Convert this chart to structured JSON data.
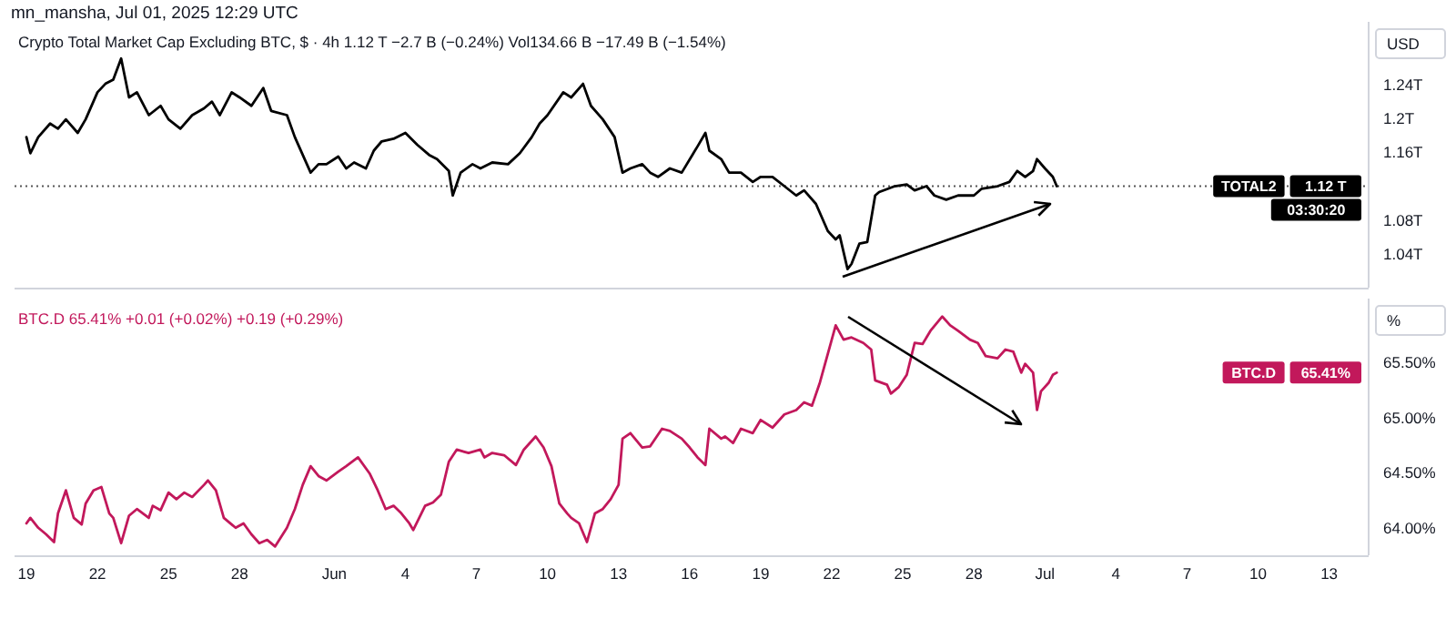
{
  "chart_data": [
    {
      "type": "line",
      "subtitle": "mn_mansha, Jul 01, 2025 12:29 UTC",
      "title": "Crypto Total Market Cap Excluding BTC, $ · 4h  1.12 T  −2.7 B (−0.24%)  Vol134.66 B  −17.49 B (−1.54%)",
      "ylabel": "USD",
      "color": "#000000",
      "x": [
        "2025-05-19T00:00",
        "2025-05-19T04:00",
        "2025-05-19T12:00",
        "2025-05-20T00:00",
        "2025-05-20T08:00",
        "2025-05-20T16:00",
        "2025-05-21T04:00",
        "2025-05-21T12:00",
        "2025-05-22T00:00",
        "2025-05-22T08:00",
        "2025-05-22T16:00",
        "2025-05-23T00:00",
        "2025-05-23T08:00",
        "2025-05-23T16:00",
        "2025-05-24T04:00",
        "2025-05-24T16:00",
        "2025-05-25T00:00",
        "2025-05-25T12:00",
        "2025-05-26T00:00",
        "2025-05-26T12:00",
        "2025-05-26T20:00",
        "2025-05-27T04:00",
        "2025-05-27T16:00",
        "2025-05-28T00:00",
        "2025-05-28T12:00",
        "2025-05-29T00:00",
        "2025-05-29T08:00",
        "2025-05-30T00:00",
        "2025-05-30T08:00",
        "2025-05-31T00:00",
        "2025-05-31T08:00",
        "2025-05-31T16:00",
        "2025-06-01T04:00",
        "2025-06-01T12:00",
        "2025-06-01T20:00",
        "2025-06-02T08:00",
        "2025-06-02T16:00",
        "2025-06-03T00:00",
        "2025-06-03T12:00",
        "2025-06-04T00:00",
        "2025-06-04T12:00",
        "2025-06-05T00:00",
        "2025-06-05T08:00",
        "2025-06-05T20:00",
        "2025-06-06T00:00",
        "2025-06-06T08:00",
        "2025-06-06T20:00",
        "2025-06-07T04:00",
        "2025-06-07T16:00",
        "2025-06-08T08:00",
        "2025-06-08T20:00",
        "2025-06-09T08:00",
        "2025-06-09T16:00",
        "2025-06-10T00:00",
        "2025-06-10T16:00",
        "2025-06-11T00:00",
        "2025-06-11T12:00",
        "2025-06-11T20:00",
        "2025-06-12T08:00",
        "2025-06-12T20:00",
        "2025-06-13T04:00",
        "2025-06-13T12:00",
        "2025-06-14T00:00",
        "2025-06-14T08:00",
        "2025-06-14T16:00",
        "2025-06-15T04:00",
        "2025-06-15T16:00",
        "2025-06-16T08:00",
        "2025-06-16T16:00",
        "2025-06-16T20:00",
        "2025-06-17T08:00",
        "2025-06-17T16:00",
        "2025-06-18T04:00",
        "2025-06-18T16:00",
        "2025-06-19T00:00",
        "2025-06-19T12:00",
        "2025-06-20T00:00",
        "2025-06-20T12:00",
        "2025-06-20T20:00",
        "2025-06-21T08:00",
        "2025-06-21T20:00",
        "2025-06-22T04:00",
        "2025-06-22T08:00",
        "2025-06-22T16:00",
        "2025-06-22T20:00",
        "2025-06-23T04:00",
        "2025-06-23T12:00",
        "2025-06-23T20:00",
        "2025-06-24T00:00",
        "2025-06-24T16:00",
        "2025-06-25T04:00",
        "2025-06-25T12:00",
        "2025-06-26T00:00",
        "2025-06-26T08:00",
        "2025-06-26T20:00",
        "2025-06-27T08:00",
        "2025-06-28T00:00",
        "2025-06-28T08:00",
        "2025-06-29T00:00",
        "2025-06-29T12:00",
        "2025-06-29T20:00",
        "2025-06-30T04:00",
        "2025-06-30T12:00",
        "2025-06-30T16:00",
        "2025-07-01T00:00",
        "2025-07-01T08:00",
        "2025-07-01T12:00"
      ],
      "values": [
        1.178,
        1.159,
        1.178,
        1.194,
        1.188,
        1.199,
        1.183,
        1.199,
        1.231,
        1.241,
        1.246,
        1.271,
        1.225,
        1.231,
        1.204,
        1.215,
        1.199,
        1.188,
        1.204,
        1.212,
        1.22,
        1.204,
        1.231,
        1.225,
        1.215,
        1.236,
        1.209,
        1.204,
        1.178,
        1.136,
        1.146,
        1.146,
        1.155,
        1.141,
        1.148,
        1.141,
        1.162,
        1.173,
        1.176,
        1.183,
        1.169,
        1.157,
        1.152,
        1.138,
        1.109,
        1.136,
        1.146,
        1.141,
        1.148,
        1.146,
        1.159,
        1.178,
        1.194,
        1.204,
        1.231,
        1.225,
        1.241,
        1.215,
        1.199,
        1.178,
        1.136,
        1.141,
        1.146,
        1.136,
        1.131,
        1.141,
        1.136,
        1.167,
        1.183,
        1.162,
        1.152,
        1.136,
        1.136,
        1.125,
        1.131,
        1.131,
        1.12,
        1.109,
        1.115,
        1.099,
        1.067,
        1.057,
        1.062,
        1.022,
        1.028,
        1.052,
        1.054,
        1.109,
        1.113,
        1.12,
        1.122,
        1.115,
        1.12,
        1.109,
        1.104,
        1.109,
        1.109,
        1.117,
        1.12,
        1.125,
        1.138,
        1.131,
        1.138,
        1.152,
        1.141,
        1.131,
        1.12
      ],
      "xlim": [
        "2025-05-18T12:00",
        "2025-07-14T16:00"
      ],
      "ylim": [
        1.0,
        1.31
      ],
      "yticks": [
        {
          "value": 1.04,
          "label": "1.04T"
        },
        {
          "value": 1.08,
          "label": "1.08T"
        },
        {
          "value": 1.16,
          "label": "1.16T"
        },
        {
          "value": 1.2,
          "label": "1.2T"
        },
        {
          "value": 1.24,
          "label": "1.24T"
        }
      ],
      "tick_labels": "y",
      "ref_lines": [
        {
          "axis": "y",
          "value": 1.12,
          "color": "#555555",
          "line_style": "dotted"
        }
      ],
      "annotations": [
        "TOTAL2",
        "1.12 T",
        "03:30:20"
      ]
    },
    {
      "type": "line",
      "title": "BTC.D  65.41%  +0.01 (+0.02%)  +0.19 (+0.29%)",
      "ylabel": "%",
      "color": "#c2185b",
      "x": [
        "2025-05-19T00:00",
        "2025-05-19T04:00",
        "2025-05-19T12:00",
        "2025-05-19T20:00",
        "2025-05-20T04:00",
        "2025-05-20T08:00",
        "2025-05-20T16:00",
        "2025-05-21T00:00",
        "2025-05-21T08:00",
        "2025-05-21T12:00",
        "2025-05-21T20:00",
        "2025-05-22T04:00",
        "2025-05-22T12:00",
        "2025-05-22T16:00",
        "2025-05-23T00:00",
        "2025-05-23T08:00",
        "2025-05-23T16:00",
        "2025-05-24T04:00",
        "2025-05-24T08:00",
        "2025-05-24T16:00",
        "2025-05-25T00:00",
        "2025-05-25T08:00",
        "2025-05-25T16:00",
        "2025-05-26T00:00",
        "2025-05-26T12:00",
        "2025-05-26T16:00",
        "2025-05-27T00:00",
        "2025-05-27T08:00",
        "2025-05-27T20:00",
        "2025-05-28T04:00",
        "2025-05-28T12:00",
        "2025-05-28T20:00",
        "2025-05-29T04:00",
        "2025-05-29T12:00",
        "2025-05-30T00:00",
        "2025-05-30T08:00",
        "2025-05-30T16:00",
        "2025-05-31T00:00",
        "2025-05-31T08:00",
        "2025-05-31T16:00",
        "2025-06-01T04:00",
        "2025-06-01T12:00",
        "2025-06-02T00:00",
        "2025-06-02T12:00",
        "2025-06-02T20:00",
        "2025-06-03T04:00",
        "2025-06-03T12:00",
        "2025-06-03T20:00",
        "2025-06-04T04:00",
        "2025-06-04T08:00",
        "2025-06-04T20:00",
        "2025-06-05T04:00",
        "2025-06-05T12:00",
        "2025-06-05T20:00",
        "2025-06-06T04:00",
        "2025-06-06T16:00",
        "2025-06-07T04:00",
        "2025-06-07T08:00",
        "2025-06-07T16:00",
        "2025-06-08T04:00",
        "2025-06-08T16:00",
        "2025-06-09T00:00",
        "2025-06-09T12:00",
        "2025-06-09T20:00",
        "2025-06-10T04:00",
        "2025-06-10T12:00",
        "2025-06-10T20:00",
        "2025-06-11T00:00",
        "2025-06-11T08:00",
        "2025-06-11T16:00",
        "2025-06-12T00:00",
        "2025-06-12T08:00",
        "2025-06-12T16:00",
        "2025-06-13T00:00",
        "2025-06-13T04:00",
        "2025-06-13T12:00",
        "2025-06-14T00:00",
        "2025-06-14T08:00",
        "2025-06-14T20:00",
        "2025-06-15T04:00",
        "2025-06-15T16:00",
        "2025-06-16T00:00",
        "2025-06-16T08:00",
        "2025-06-16T16:00",
        "2025-06-16T20:00",
        "2025-06-17T08:00",
        "2025-06-17T12:00",
        "2025-06-17T20:00",
        "2025-06-18T04:00",
        "2025-06-18T16:00",
        "2025-06-19T00:00",
        "2025-06-19T12:00",
        "2025-06-20T00:00",
        "2025-06-20T12:00",
        "2025-06-20T20:00",
        "2025-06-21T04:00",
        "2025-06-21T12:00",
        "2025-06-22T00:00",
        "2025-06-22T04:00",
        "2025-06-22T12:00",
        "2025-06-22T20:00",
        "2025-06-23T08:00",
        "2025-06-23T16:00",
        "2025-06-23T20:00",
        "2025-06-24T08:00",
        "2025-06-24T12:00",
        "2025-06-24T20:00",
        "2025-06-25T04:00",
        "2025-06-25T12:00",
        "2025-06-25T20:00",
        "2025-06-26T04:00",
        "2025-06-26T16:00",
        "2025-06-27T00:00",
        "2025-06-27T08:00",
        "2025-06-27T20:00",
        "2025-06-28T04:00",
        "2025-06-28T12:00",
        "2025-06-29T00:00",
        "2025-06-29T08:00",
        "2025-06-29T16:00",
        "2025-06-30T00:00",
        "2025-06-30T04:00",
        "2025-06-30T12:00",
        "2025-06-30T16:00",
        "2025-06-30T20:00",
        "2025-07-01T04:00",
        "2025-07-01T08:00",
        "2025-07-01T12:00"
      ],
      "values": [
        64.04,
        64.09,
        64.0,
        63.94,
        63.87,
        64.13,
        64.34,
        64.09,
        64.03,
        64.22,
        64.34,
        64.37,
        64.13,
        64.09,
        63.86,
        64.11,
        64.17,
        64.09,
        64.2,
        64.16,
        64.32,
        64.26,
        64.32,
        64.28,
        64.39,
        64.43,
        64.34,
        64.09,
        64.0,
        64.04,
        63.94,
        63.86,
        63.89,
        63.83,
        64.0,
        64.17,
        64.39,
        64.56,
        64.47,
        64.43,
        64.51,
        64.56,
        64.64,
        64.49,
        64.34,
        64.17,
        64.2,
        64.13,
        64.04,
        63.98,
        64.2,
        64.23,
        64.3,
        64.6,
        64.71,
        64.68,
        64.71,
        64.64,
        64.68,
        64.66,
        64.57,
        64.71,
        64.83,
        64.73,
        64.56,
        64.22,
        64.13,
        64.09,
        64.04,
        63.87,
        64.13,
        64.17,
        64.26,
        64.39,
        64.81,
        64.86,
        64.73,
        64.74,
        64.9,
        64.88,
        64.81,
        64.73,
        64.64,
        64.57,
        64.9,
        64.81,
        64.83,
        64.77,
        64.9,
        64.86,
        64.98,
        64.91,
        65.03,
        65.07,
        65.14,
        65.11,
        65.32,
        65.71,
        65.84,
        65.71,
        65.73,
        65.68,
        65.62,
        65.34,
        65.3,
        65.22,
        65.28,
        65.39,
        65.68,
        65.67,
        65.79,
        65.92,
        65.84,
        65.79,
        65.71,
        65.68,
        65.56,
        65.54,
        65.62,
        65.6,
        65.41,
        65.49,
        65.41,
        65.07,
        65.24,
        65.32,
        65.39,
        65.41
      ],
      "xlim": [
        "2025-05-18T12:00",
        "2025-07-14T16:00"
      ],
      "xticks": [
        {
          "value": "2025-05-19",
          "label": "19"
        },
        {
          "value": "2025-05-22",
          "label": "22"
        },
        {
          "value": "2025-05-25",
          "label": "25"
        },
        {
          "value": "2025-05-28",
          "label": "28"
        },
        {
          "value": "2025-06-01",
          "label": "Jun"
        },
        {
          "value": "2025-06-04",
          "label": "4"
        },
        {
          "value": "2025-06-07",
          "label": "7"
        },
        {
          "value": "2025-06-10",
          "label": "10"
        },
        {
          "value": "2025-06-13",
          "label": "13"
        },
        {
          "value": "2025-06-16",
          "label": "16"
        },
        {
          "value": "2025-06-19",
          "label": "19"
        },
        {
          "value": "2025-06-22",
          "label": "22"
        },
        {
          "value": "2025-06-25",
          "label": "25"
        },
        {
          "value": "2025-06-28",
          "label": "28"
        },
        {
          "value": "2025-07-01",
          "label": "Jul"
        },
        {
          "value": "2025-07-04",
          "label": "4"
        },
        {
          "value": "2025-07-07",
          "label": "7"
        },
        {
          "value": "2025-07-10",
          "label": "10"
        },
        {
          "value": "2025-07-13",
          "label": "13"
        }
      ],
      "ylim": [
        63.75,
        66.05
      ],
      "yticks": [
        {
          "value": 64,
          "label": "64.00%"
        },
        {
          "value": 64.5,
          "label": "64.50%"
        },
        {
          "value": 65,
          "label": "65.00%"
        },
        {
          "value": 65.5,
          "label": "65.50%"
        }
      ],
      "annotations": [
        "BTC.D",
        "65.41%"
      ]
    }
  ]
}
